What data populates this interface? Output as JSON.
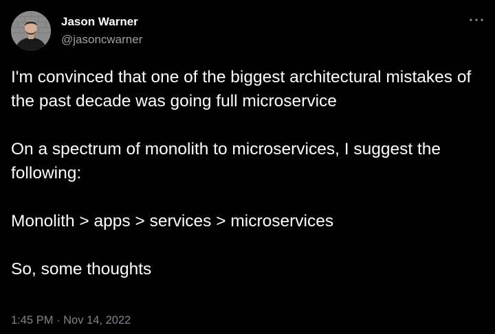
{
  "author": {
    "display_name": "Jason Warner",
    "handle": "@jasoncwarner"
  },
  "header": {
    "more_icon": "more-horizontal-icon"
  },
  "tweet": {
    "paragraphs": [
      "I'm convinced that one of the biggest architectural mistakes of the past decade was going full microservice",
      "On a spectrum of monolith to microservices, I suggest the following:",
      "Monolith > apps > services > microservices",
      "So, some thoughts"
    ],
    "time": "1:45 PM",
    "separator": "·",
    "date": "Nov 14, 2022"
  },
  "colors": {
    "background": "#000000",
    "text": "#ffffff",
    "secondary_text": "#9ca0a4"
  }
}
